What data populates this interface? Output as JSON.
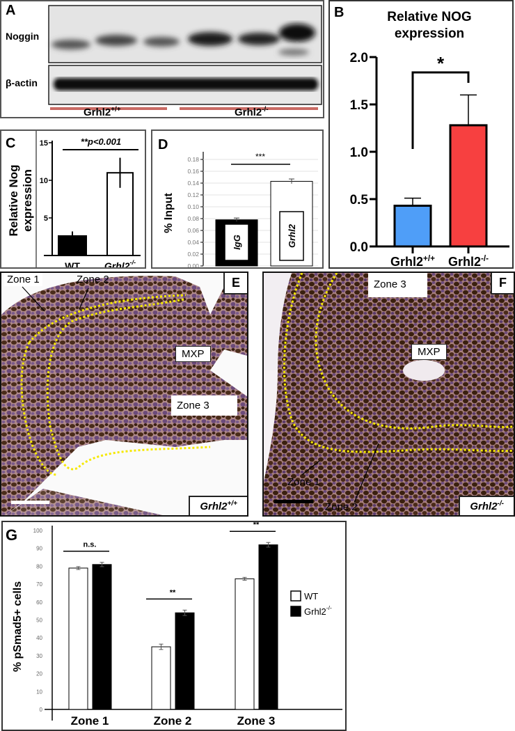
{
  "panel_a": {
    "letter": "A",
    "row_labels": [
      "Noggin",
      "β-actin"
    ],
    "groups": [
      {
        "name": "Grhl2",
        "sup": "+/+"
      },
      {
        "name": "Grhl2",
        "sup": "-/-"
      }
    ],
    "group_color": "#c96a64"
  },
  "panel_e": {
    "letter": "E",
    "labels": {
      "zone1": "Zone 1",
      "zone2": "Zone 2",
      "zone3": "Zone 3",
      "mxp": "MXP"
    },
    "genotype": "Grhl2",
    "genotype_sup": "+/+"
  },
  "panel_f": {
    "letter": "F",
    "labels": {
      "zone1": "Zone 1",
      "zone2": "Zone 2",
      "zone3": "Zone 3",
      "mxp": "MXP"
    },
    "genotype": "Grhl2",
    "genotype_sup": "-/-"
  },
  "chart_data": [
    {
      "panel": "B",
      "type": "bar",
      "title": "Relative NOG expression",
      "title_lines": [
        "Relative NOG",
        "expression"
      ],
      "categories": [
        "Grhl2",
        "Grhl2"
      ],
      "category_sups": [
        "+/+",
        "-/-"
      ],
      "values": [
        0.43,
        1.28
      ],
      "errors": [
        0.08,
        0.32
      ],
      "colors": [
        "#4f9ef8",
        "#f74040"
      ],
      "ylim": [
        0,
        2.0
      ],
      "yticks": [
        "0.0",
        "0.5",
        "1.0",
        "1.5",
        "2.0"
      ],
      "significance": "*"
    },
    {
      "panel": "C",
      "type": "bar",
      "ylabel_lines": [
        "Relative Nog",
        "expression"
      ],
      "categories": [
        "WT",
        "Grhl2"
      ],
      "category_sups": [
        "",
        "-/-"
      ],
      "values": [
        2.6,
        11.0
      ],
      "errors": [
        0.6,
        2.0
      ],
      "colors": [
        "#000000",
        "#ffffff"
      ],
      "ylim": [
        0,
        15
      ],
      "yticks": [
        "5",
        "10",
        "15"
      ],
      "significance": "**p<0.001"
    },
    {
      "panel": "D",
      "type": "bar",
      "ylabel": "% Input",
      "categories": [
        "IgG",
        "Grhl2"
      ],
      "values": [
        0.078,
        0.143
      ],
      "errors": [
        0.003,
        0.004
      ],
      "colors": [
        "#000000",
        "#ffffff"
      ],
      "ylim": [
        0,
        0.18
      ],
      "yticks": [
        "0.00",
        "0.02",
        "0.04",
        "0.06",
        "0.08",
        "0.10",
        "0.12",
        "0.14",
        "0.16",
        "0.18"
      ],
      "grid": true,
      "significance": "***"
    },
    {
      "panel": "G",
      "type": "bar",
      "ylabel": "% pSmad5+ cells",
      "categories": [
        "Zone 1",
        "Zone 2",
        "Zone 3"
      ],
      "series": [
        {
          "name": "WT",
          "sup": "",
          "color": "#ffffff",
          "values": [
            79,
            35,
            73
          ],
          "errors": [
            0.8,
            1.5,
            0.8
          ]
        },
        {
          "name": "Grhl2",
          "sup": "-/-",
          "color": "#000000",
          "values": [
            81,
            54,
            92
          ],
          "errors": [
            1.2,
            1.5,
            1.3
          ]
        }
      ],
      "ylim": [
        0,
        100
      ],
      "yticks": [
        "0",
        "10",
        "20",
        "30",
        "40",
        "50",
        "60",
        "70",
        "80",
        "90",
        "100"
      ],
      "significance": [
        "n.s.",
        "**",
        "**"
      ],
      "legend": "right"
    }
  ]
}
